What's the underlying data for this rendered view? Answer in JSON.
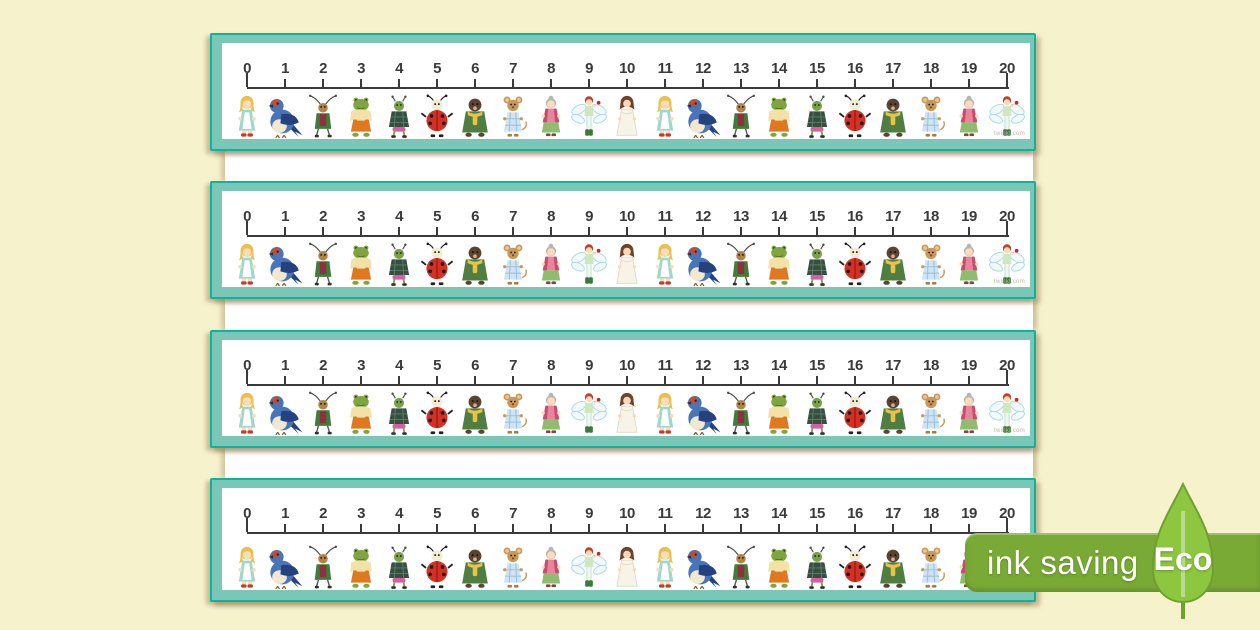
{
  "page": {
    "background": "#f6f2cc",
    "strip_fill": "#7ac7b8",
    "strip_edge": "#0fb39d",
    "paper": "#ffffff",
    "strip_count": 4
  },
  "number_line": {
    "min": 0,
    "max": 20,
    "ticks": [
      {
        "label": "0",
        "character": "thumbelina"
      },
      {
        "label": "1",
        "character": "swallow"
      },
      {
        "label": "2",
        "character": "cricket"
      },
      {
        "label": "3",
        "character": "toad"
      },
      {
        "label": "4",
        "character": "beetle"
      },
      {
        "label": "5",
        "character": "ladybird"
      },
      {
        "label": "6",
        "character": "mole"
      },
      {
        "label": "7",
        "character": "mouse"
      },
      {
        "label": "8",
        "character": "old-woman"
      },
      {
        "label": "9",
        "character": "fairy"
      },
      {
        "label": "10",
        "character": "lady-in-white"
      },
      {
        "label": "11",
        "character": "thumbelina"
      },
      {
        "label": "12",
        "character": "swallow"
      },
      {
        "label": "13",
        "character": "cricket"
      },
      {
        "label": "14",
        "character": "toad"
      },
      {
        "label": "15",
        "character": "beetle"
      },
      {
        "label": "16",
        "character": "ladybird"
      },
      {
        "label": "17",
        "character": "mole"
      },
      {
        "label": "18",
        "character": "mouse"
      },
      {
        "label": "19",
        "character": "old-woman"
      },
      {
        "label": "20",
        "character": "fairy"
      }
    ]
  },
  "watermark": "twinkl.com",
  "eco_badge": {
    "label": "ink saving",
    "eco": "Eco",
    "band_color": "#79aa35",
    "leaf_color": "#8dc63f"
  }
}
